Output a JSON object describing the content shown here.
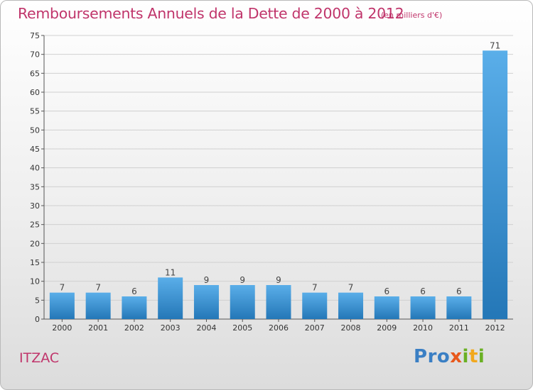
{
  "title": "Remboursements Annuels de la Dette de 2000 à 2012",
  "subtitle": "(en milliers d'€)",
  "commune": "ITZAC",
  "logo": {
    "letters": [
      {
        "char": "P",
        "color": "#3a7fc4"
      },
      {
        "char": "r",
        "color": "#3a7fc4"
      },
      {
        "char": "o",
        "color": "#3a7fc4"
      },
      {
        "char": "x",
        "color": "#e8581c"
      },
      {
        "char": "i",
        "color": "#6ab023"
      },
      {
        "char": "t",
        "color": "#f2a81d"
      },
      {
        "char": "i",
        "color": "#6ab023"
      }
    ]
  },
  "colors": {
    "title": "#c0356b",
    "bar_light": "#5aaee9",
    "bar_dark": "#2477b7",
    "grid": "#d0d0d0",
    "axis_text": "#333333"
  },
  "chart_data": {
    "type": "bar",
    "title": "Remboursements Annuels de la Dette de 2000 à 2012",
    "subtitle": "(en milliers d'€)",
    "categories": [
      "2000",
      "2001",
      "2002",
      "2003",
      "2004",
      "2005",
      "2006",
      "2007",
      "2008",
      "2009",
      "2010",
      "2011",
      "2012"
    ],
    "values": [
      7,
      7,
      6,
      11,
      9,
      9,
      9,
      7,
      7,
      6,
      6,
      6,
      71
    ],
    "ylim": [
      0,
      75
    ],
    "yticks": [
      0,
      5,
      10,
      15,
      20,
      25,
      30,
      35,
      40,
      45,
      50,
      55,
      60,
      65,
      70,
      75
    ],
    "grid": true,
    "data_labels": true
  }
}
